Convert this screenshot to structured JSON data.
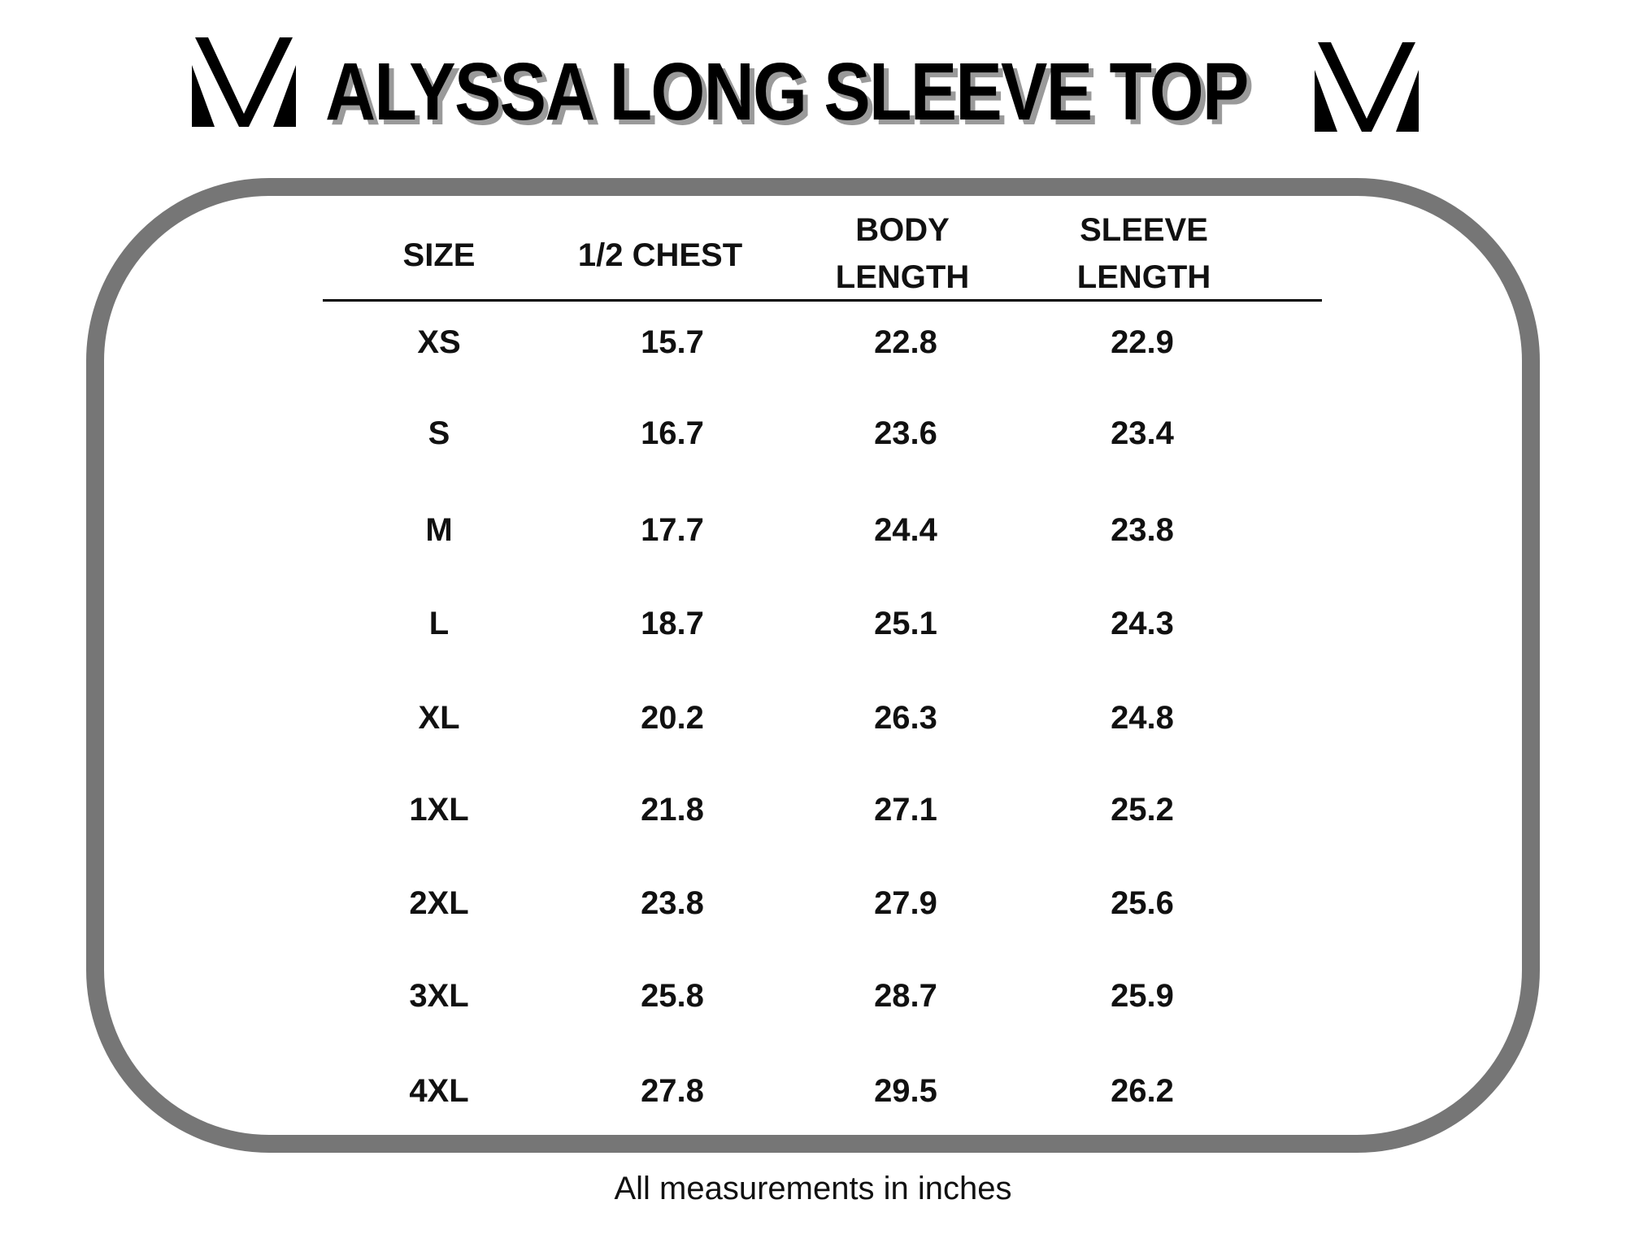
{
  "title": "ALYSSA LONG SLEEVE TOP",
  "logo_icon": "v-chevron-logo",
  "colors": {
    "frame": "#767676",
    "title_shadow": "#9a9a9a",
    "text": "#000000"
  },
  "table": {
    "headers": [
      {
        "line1": "SIZE",
        "line2": ""
      },
      {
        "line1": "1/2 CHEST",
        "line2": ""
      },
      {
        "line1": "BODY",
        "line2": "LENGTH"
      },
      {
        "line1": "SLEEVE",
        "line2": "LENGTH"
      }
    ],
    "rows": [
      [
        "XS",
        "15.7",
        "22.8",
        "22.9"
      ],
      [
        "S",
        "16.7",
        "23.6",
        "23.4"
      ],
      [
        "M",
        "17.7",
        "24.4",
        "23.8"
      ],
      [
        "L",
        "18.7",
        "25.1",
        "24.3"
      ],
      [
        "XL",
        "20.2",
        "26.3",
        "24.8"
      ],
      [
        "1XL",
        "21.8",
        "27.1",
        "25.2"
      ],
      [
        "2XL",
        "23.8",
        "27.9",
        "25.6"
      ],
      [
        "3XL",
        "25.8",
        "28.7",
        "25.9"
      ],
      [
        "4XL",
        "27.8",
        "29.5",
        "26.2"
      ]
    ]
  },
  "footer": "All measurements in inches"
}
